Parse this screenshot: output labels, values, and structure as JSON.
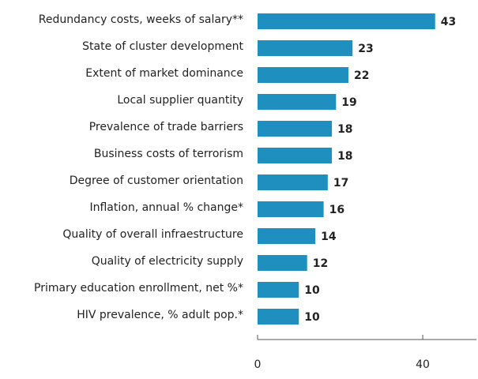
{
  "chart_data": {
    "type": "hbar",
    "categories": [
      "Redundancy costs, weeks of salary**",
      "State of cluster development",
      "Extent of market dominance",
      "Local supplier quantity",
      "Prevalence of trade barriers",
      "Business costs of terrorism",
      "Degree of customer orientation",
      "Inflation, annual % change*",
      "Quality of overall infraestructure",
      "Quality of electricity supply",
      "Primary education enrollment, net %*",
      "HIV prevalence, % adult pop.*"
    ],
    "values": [
      43,
      23,
      22,
      19,
      18,
      18,
      17,
      16,
      14,
      12,
      10,
      10
    ],
    "color": "#1f8fc0",
    "xlim": [
      0,
      53
    ],
    "xticks": [
      0,
      40
    ]
  }
}
